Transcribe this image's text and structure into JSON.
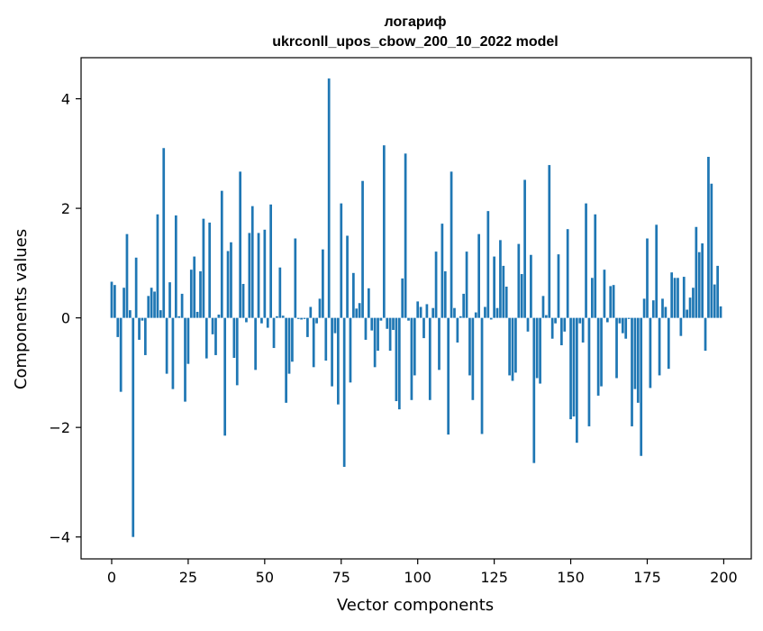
{
  "chart_data": {
    "type": "bar",
    "title": "логариф\nukrconll_upos_cbow_200_10_2022 model",
    "title_lines": [
      "логариф",
      "ukrconll_upos_cbow_200_10_2022 model"
    ],
    "xlabel": "Vector components",
    "ylabel": "Components values",
    "xlim": [
      -10,
      209
    ],
    "ylim": [
      -4.4,
      4.75
    ],
    "xticks": [
      0,
      25,
      50,
      75,
      100,
      125,
      150,
      175,
      200
    ],
    "yticks": [
      -4,
      -2,
      0,
      2,
      4
    ],
    "ytick_labels": [
      "−4",
      "−2",
      "0",
      "2",
      "4"
    ],
    "grid": false,
    "bar_color": "#1f77b4",
    "x": [
      0,
      1,
      2,
      3,
      4,
      5,
      6,
      7,
      8,
      9,
      10,
      11,
      12,
      13,
      14,
      15,
      16,
      17,
      18,
      19,
      20,
      21,
      22,
      23,
      24,
      25,
      26,
      27,
      28,
      29,
      30,
      31,
      32,
      33,
      34,
      35,
      36,
      37,
      38,
      39,
      40,
      41,
      42,
      43,
      44,
      45,
      46,
      47,
      48,
      49,
      50,
      51,
      52,
      53,
      54,
      55,
      56,
      57,
      58,
      59,
      60,
      61,
      62,
      63,
      64,
      65,
      66,
      67,
      68,
      69,
      70,
      71,
      72,
      73,
      74,
      75,
      76,
      77,
      78,
      79,
      80,
      81,
      82,
      83,
      84,
      85,
      86,
      87,
      88,
      89,
      90,
      91,
      92,
      93,
      94,
      95,
      96,
      97,
      98,
      99,
      100,
      101,
      102,
      103,
      104,
      105,
      106,
      107,
      108,
      109,
      110,
      111,
      112,
      113,
      114,
      115,
      116,
      117,
      118,
      119,
      120,
      121,
      122,
      123,
      124,
      125,
      126,
      127,
      128,
      129,
      130,
      131,
      132,
      133,
      134,
      135,
      136,
      137,
      138,
      139,
      140,
      141,
      142,
      143,
      144,
      145,
      146,
      147,
      148,
      149,
      150,
      151,
      152,
      153,
      154,
      155,
      156,
      157,
      158,
      159,
      160,
      161,
      162,
      163,
      164,
      165,
      166,
      167,
      168,
      169,
      170,
      171,
      172,
      173,
      174,
      175,
      176,
      177,
      178,
      179,
      180,
      181,
      182,
      183,
      184,
      185,
      186,
      187,
      188,
      189,
      190,
      191,
      192,
      193,
      194,
      195,
      196,
      197,
      198,
      199
    ],
    "values": [
      0.66,
      0.6,
      -0.35,
      -1.35,
      0.55,
      1.53,
      0.14,
      -4.0,
      1.1,
      -0.4,
      -0.05,
      -0.68,
      0.4,
      0.55,
      0.48,
      1.89,
      0.14,
      3.1,
      -1.02,
      0.65,
      -1.3,
      1.87,
      0.03,
      0.44,
      -1.53,
      -0.84,
      0.88,
      1.12,
      0.11,
      0.85,
      1.81,
      -0.74,
      1.74,
      -0.3,
      -0.68,
      0.06,
      2.32,
      -2.15,
      1.22,
      1.38,
      -0.73,
      -1.23,
      2.67,
      0.62,
      -0.08,
      1.55,
      2.04,
      -0.95,
      1.55,
      -0.1,
      1.61,
      -0.18,
      2.07,
      -0.55,
      0.03,
      0.92,
      0.04,
      -1.55,
      -1.02,
      -0.8,
      1.45,
      -0.02,
      -0.03,
      -0.02,
      -0.35,
      0.2,
      -0.9,
      -0.1,
      0.35,
      1.25,
      -0.78,
      4.37,
      -1.25,
      -0.28,
      -1.58,
      2.09,
      -2.72,
      1.5,
      -1.18,
      0.82,
      0.17,
      0.27,
      2.5,
      -0.4,
      0.54,
      -0.23,
      -0.9,
      -0.6,
      -0.05,
      3.15,
      -0.2,
      -0.6,
      -0.22,
      -1.52,
      -1.67,
      0.72,
      3.0,
      -0.05,
      -1.5,
      -1.05,
      0.3,
      0.2,
      -0.37,
      0.25,
      -1.5,
      0.18,
      1.21,
      -0.95,
      1.72,
      0.85,
      -2.13,
      2.67,
      0.18,
      -0.45,
      0.03,
      0.44,
      1.21,
      -1.05,
      -1.5,
      0.1,
      1.53,
      -2.12,
      0.2,
      1.95,
      -0.03,
      1.12,
      0.18,
      1.42,
      0.95,
      0.57,
      -1.05,
      -1.15,
      -1.0,
      1.35,
      0.8,
      2.52,
      -0.25,
      1.15,
      -2.65,
      -1.1,
      -1.2,
      0.4,
      0.05,
      2.79,
      -0.38,
      -0.1,
      1.16,
      -0.5,
      -0.25,
      1.62,
      -1.85,
      -1.8,
      -2.28,
      -0.1,
      -0.45,
      2.09,
      -1.98,
      0.73,
      1.89,
      -1.42,
      -1.25,
      0.88,
      -0.08,
      0.58,
      0.6,
      -1.1,
      -0.1,
      -0.28,
      -0.38,
      -0.02,
      -1.98,
      -1.3,
      -1.55,
      -2.52,
      0.35,
      1.45,
      -1.28,
      0.32,
      1.7,
      -1.05,
      0.35,
      0.2,
      -0.93,
      0.83,
      0.73,
      0.73,
      -0.33,
      0.75,
      0.15,
      0.37,
      0.55,
      1.66,
      1.2,
      1.36,
      -0.6,
      2.94,
      2.45,
      0.61,
      0.95,
      0.21
    ]
  }
}
